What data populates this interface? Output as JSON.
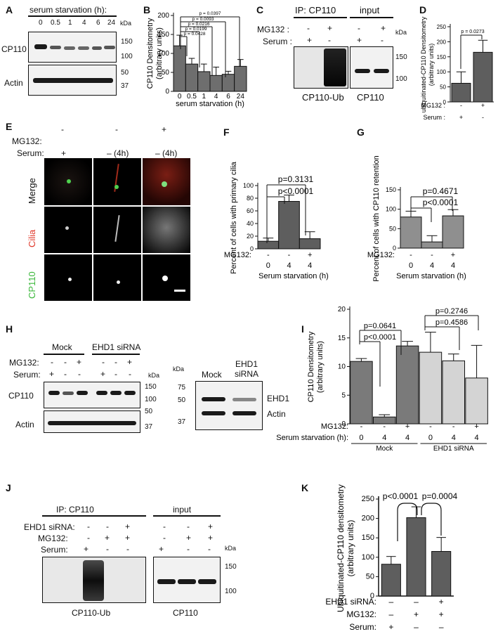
{
  "panels": {
    "A": {
      "letter": "A",
      "header": "serum starvation (h):",
      "lanes": [
        "0",
        "0.5",
        "1",
        "4",
        "6",
        "24"
      ],
      "kda_label": "kDa",
      "rows": [
        {
          "label": "CP110",
          "markers": [
            "150",
            "100"
          ]
        },
        {
          "label": "Actin",
          "markers": [
            "50",
            "37"
          ]
        }
      ]
    },
    "B": {
      "letter": "B",
      "pvalues": [
        "p = 0.0397",
        "p = 0.0093",
        "p = 0.0216",
        "p = 0.0199",
        "p = 0.0428"
      ]
    },
    "C": {
      "letter": "C",
      "ip_label": "IP: CP110",
      "input_label": "input",
      "row_labels": [
        "MG132 :",
        "Serum :"
      ],
      "mg132_signs": [
        "-",
        "+",
        "-",
        "+"
      ],
      "serum_signs": [
        "+",
        "-",
        "+",
        "-"
      ],
      "kda_label": "kDa",
      "markers": [
        "150",
        "100"
      ],
      "blot_labels": [
        "CP110-Ub",
        "CP110"
      ]
    },
    "D": {
      "letter": "D",
      "pvalues": [
        "p = 0.0273"
      ]
    },
    "E": {
      "letter": "E",
      "row_header_labels": [
        "MG132:",
        "Serum:"
      ],
      "mg132_signs": [
        "-",
        "-",
        "+"
      ],
      "serum_signs": [
        "+",
        "– (4h)",
        "– (4h)"
      ],
      "row_labels": [
        "Merge",
        "Cilia",
        "CP110"
      ],
      "row_label_colors": [
        "#111111",
        "#e0392b",
        "#3cb83c"
      ]
    },
    "F": {
      "letter": "F",
      "pvalues": [
        "p=0.3131",
        "p<0.0001"
      ]
    },
    "G": {
      "letter": "G",
      "pvalues": [
        "p=0.4671",
        "p<0.0001"
      ]
    },
    "H": {
      "letter": "H",
      "group_labels": [
        "Mock",
        "EHD1 siRNA"
      ],
      "row_labels": [
        "MG132:",
        "Serum:"
      ],
      "mg132_signs": [
        "-",
        "-",
        "+",
        "-",
        "-",
        "+"
      ],
      "serum_signs": [
        "+",
        "-",
        "-",
        "+",
        "-",
        "-"
      ],
      "blot_rows": [
        "CP110",
        "Actin"
      ],
      "kda_label": "kDa",
      "markers": [
        "150",
        "100",
        "50",
        "37"
      ],
      "side_blot": {
        "kda_label": "kDa",
        "lanes": [
          "Mock",
          "EHD1\nsiRNA"
        ],
        "markers": [
          "75",
          "50",
          "37"
        ],
        "rows": [
          "EHD1",
          "Actin"
        ]
      }
    },
    "I": {
      "letter": "I",
      "pvalues": [
        "p=0.2746",
        "p=0.4586",
        "p=0.0641",
        "p<0.0001"
      ]
    },
    "J": {
      "letter": "J",
      "ip_label": "IP: CP110",
      "input_label": "input",
      "row_labels": [
        "EHD1 siRNA:",
        "MG132:",
        "Serum:"
      ],
      "ehd1_signs": [
        "-",
        "-",
        "+",
        "-",
        "-",
        "+"
      ],
      "mg132_signs": [
        "-",
        "+",
        "+",
        "-",
        "+",
        "+"
      ],
      "serum_signs": [
        "+",
        "-",
        "-",
        "+",
        "-",
        "-"
      ],
      "kda_label": "kDa",
      "markers": [
        "150",
        "100"
      ],
      "blot_labels": [
        "CP110-Ub",
        "CP110"
      ]
    },
    "K": {
      "letter": "K",
      "pvalues": [
        "p<0.0001",
        "p=0.0004"
      ]
    }
  },
  "chart_data": [
    {
      "panel": "B",
      "type": "bar",
      "categories": [
        "0",
        "0.5",
        "1",
        "4",
        "6",
        "24"
      ],
      "values": [
        120,
        72,
        52,
        42,
        45,
        66
      ],
      "errors": [
        28,
        15,
        20,
        22,
        8,
        18
      ],
      "xlabel": "serum starvation (h)",
      "ylabel": "CP110 Densitometry (arbitrary units)",
      "ylim": [
        0,
        200
      ],
      "yticks": [
        "0",
        "50",
        "100",
        "150",
        "200"
      ],
      "bar_color": "#6e6e6e"
    },
    {
      "panel": "D",
      "type": "bar",
      "categories": [
        "1",
        "2"
      ],
      "values": [
        62,
        165
      ],
      "errors": [
        38,
        40
      ],
      "ylabel": "ubiquitinated-CP110 Densitometry (arbitrary units)",
      "ylim": [
        0,
        250
      ],
      "yticks": [
        "0",
        "50",
        "100",
        "150",
        "200",
        "250"
      ],
      "condition_rows": [
        {
          "label": "MG132 :",
          "signs": [
            "-",
            "+"
          ]
        },
        {
          "label": "Serum :",
          "signs": [
            "+",
            "-"
          ]
        }
      ],
      "bar_color": "#5e5e5e"
    },
    {
      "panel": "F",
      "type": "bar",
      "categories": [
        "1",
        "2",
        "3"
      ],
      "values": [
        12,
        75,
        16
      ],
      "errors": [
        5,
        10,
        11
      ],
      "ylabel": "Percent of cells with primary cilia",
      "xlabel": "Serum starvation (h)",
      "ylim": [
        0,
        100
      ],
      "yticks": [
        "0",
        "20",
        "40",
        "60",
        "80",
        "100"
      ],
      "condition_rows": [
        {
          "label": "MG132:",
          "signs": [
            "-",
            "-",
            "+"
          ]
        },
        {
          "label": "",
          "signs": [
            "0",
            "4",
            "4"
          ]
        }
      ],
      "bar_color": "#5e5e5e"
    },
    {
      "panel": "G",
      "type": "bar",
      "categories": [
        "1",
        "2",
        "3"
      ],
      "values": [
        80,
        16,
        83
      ],
      "errors": [
        15,
        16,
        16
      ],
      "ylabel": "Percent of cells with CP110 retention",
      "xlabel": "Serum starvation (h)",
      "ylim": [
        0,
        150
      ],
      "yticks": [
        "0",
        "50",
        "100",
        "150"
      ],
      "condition_rows": [
        {
          "label": "MG132:",
          "signs": [
            "-",
            "-",
            "+"
          ]
        },
        {
          "label": "",
          "signs": [
            "0",
            "4",
            "4"
          ]
        }
      ],
      "bar_color": "#8f8f8f"
    },
    {
      "panel": "I",
      "type": "bar",
      "categories": [
        "1",
        "2",
        "3",
        "4",
        "5",
        "6"
      ],
      "values": [
        10.9,
        1.2,
        13.6,
        12.5,
        11.0,
        8.0
      ],
      "errors": [
        0.5,
        0.4,
        0.8,
        3.5,
        1.2,
        5.7
      ],
      "ylabel": "CP110 Densitometry (arbitrary units)",
      "ylim": [
        0,
        20
      ],
      "yticks": [
        "0",
        "5",
        "10",
        "15",
        "20"
      ],
      "condition_rows": [
        {
          "label": "MG132:",
          "signs": [
            "-",
            "-",
            "+",
            "-",
            "-",
            "+"
          ]
        },
        {
          "label": "Serum starvation (h):",
          "signs": [
            "0",
            "4",
            "4",
            "0",
            "4",
            "4"
          ]
        }
      ],
      "group_labels": [
        "Mock",
        "EHD1 siRNA"
      ],
      "bar_colors": [
        "#7a7a7a",
        "#7a7a7a",
        "#7a7a7a",
        "#d4d4d4",
        "#d4d4d4",
        "#d4d4d4"
      ]
    },
    {
      "panel": "K",
      "type": "bar",
      "categories": [
        "1",
        "2",
        "3"
      ],
      "values": [
        82,
        202,
        115
      ],
      "errors": [
        20,
        28,
        36
      ],
      "ylabel": "Ubiquitinated-CP110 densitometry (arbitrary units)",
      "ylim": [
        0,
        250
      ],
      "yticks": [
        "0",
        "50",
        "100",
        "150",
        "200",
        "250"
      ],
      "condition_rows": [
        {
          "label": "EHD1 siRNA:",
          "signs": [
            "–",
            "–",
            "+"
          ]
        },
        {
          "label": "MG132:",
          "signs": [
            "–",
            "+",
            "+"
          ]
        },
        {
          "label": "Serum:",
          "signs": [
            "+",
            "–",
            "–"
          ]
        }
      ],
      "bar_color": "#5e5e5e"
    }
  ]
}
